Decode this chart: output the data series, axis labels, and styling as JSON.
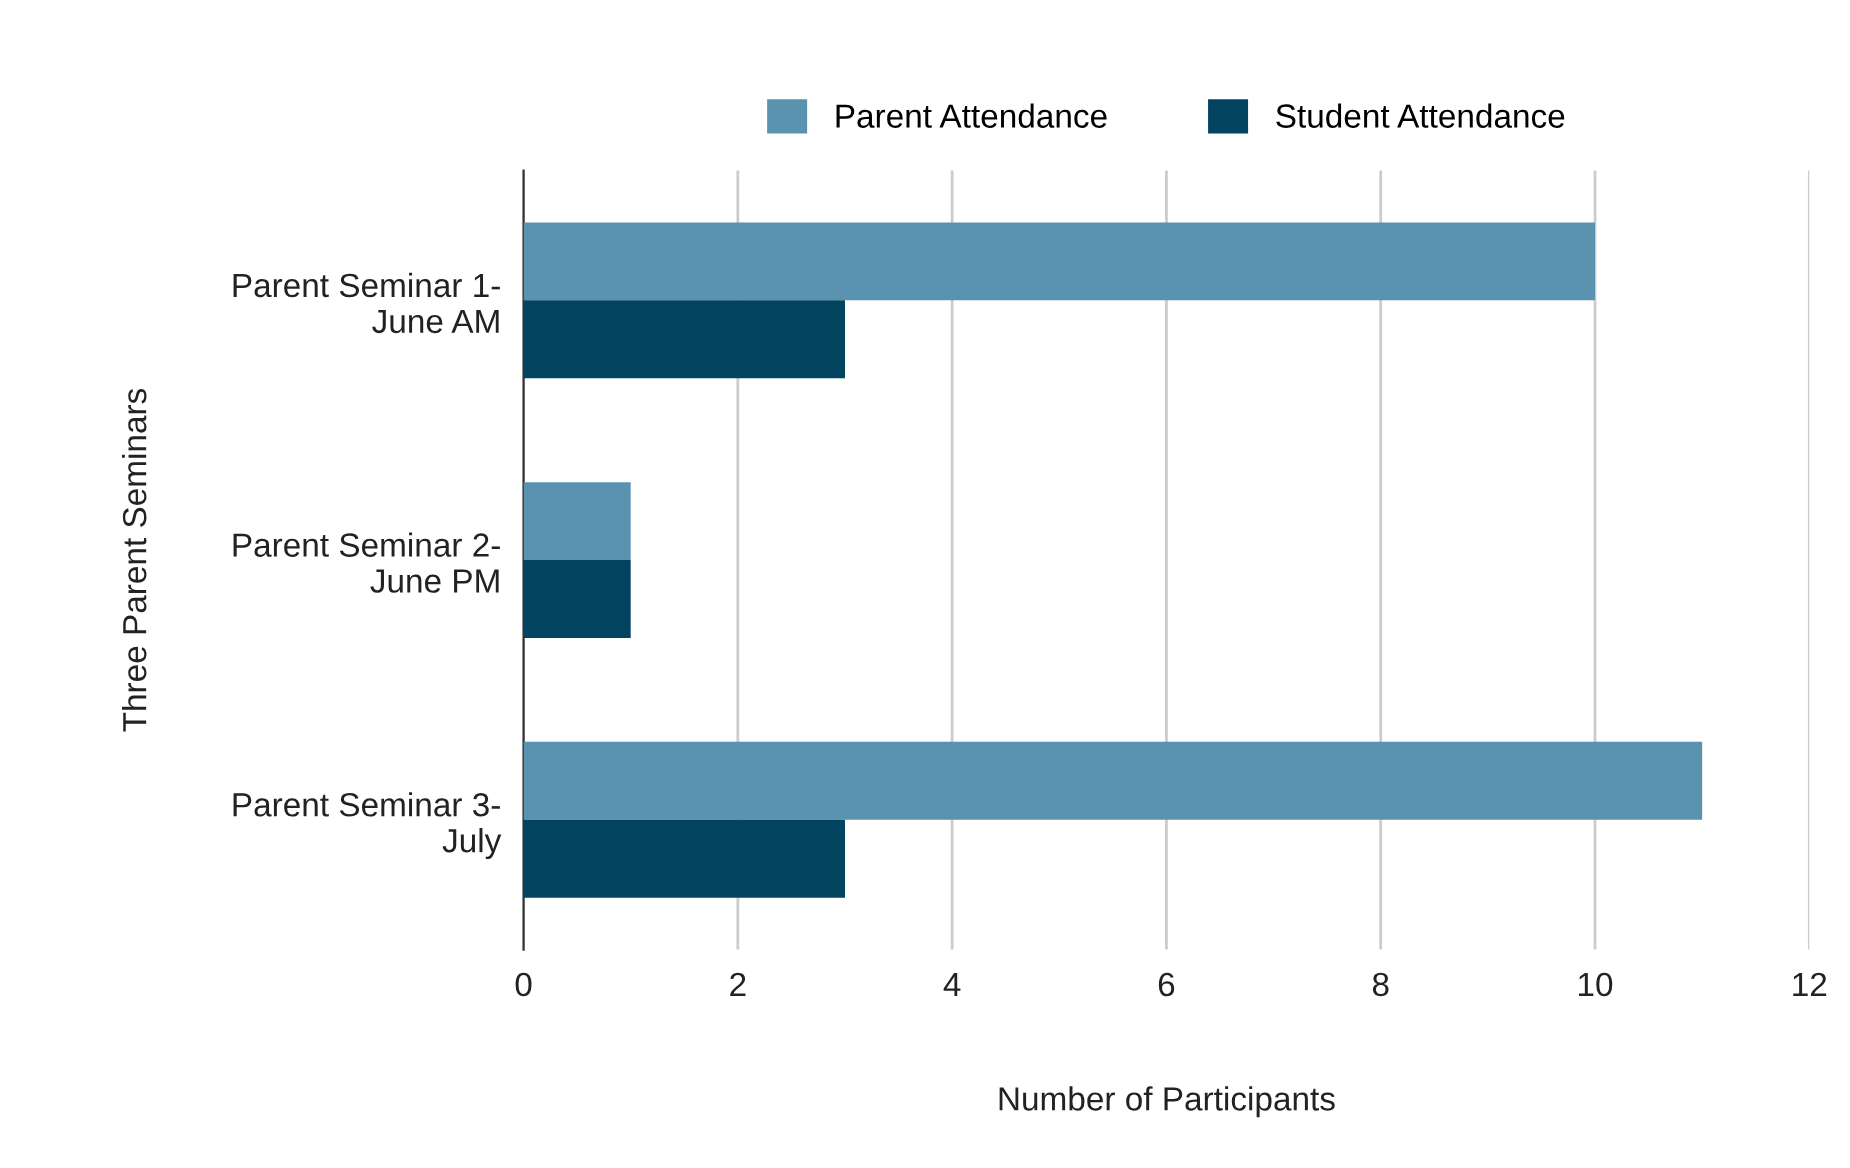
{
  "chart_data": {
    "type": "bar",
    "orientation": "horizontal",
    "categories": [
      "Parent Seminar 1-\nJune AM",
      "Parent Seminar 2-\nJune PM",
      "Parent Seminar 3-\nJuly"
    ],
    "series": [
      {
        "name": "Parent Attendance",
        "color": "#5a93b0",
        "values": [
          10,
          1,
          11
        ]
      },
      {
        "name": "Student Attendance",
        "color": "#02445f",
        "values": [
          3,
          1,
          3
        ]
      }
    ],
    "xlabel": "Number of Participants",
    "ylabel": "Three Parent Seminars",
    "xlim": [
      0,
      12
    ],
    "xticks": [
      0,
      2,
      4,
      6,
      8,
      10,
      12
    ],
    "grid": "x",
    "legend": "top"
  }
}
